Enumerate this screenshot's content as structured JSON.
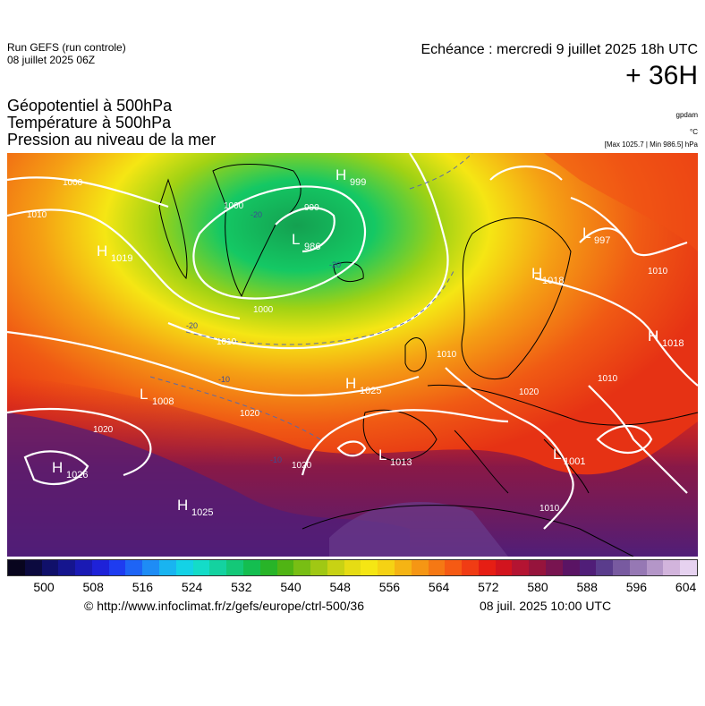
{
  "header": {
    "run_line1": "Run GEFS (run controle)",
    "run_line2": "08 juillet 2025 06Z",
    "echeance": "Echéance : mercredi 9 juillet 2025 18h UTC",
    "lead_time": "+ 36H"
  },
  "titles": {
    "line1": "Géopotentiel à 500hPa",
    "line2": "Température à 500hPa",
    "line3": "Pression au niveau de la mer"
  },
  "units": {
    "geopotential": "gpdam",
    "temperature": "°C",
    "pressure": "[Max 1025.7 | Min 986.5] hPa"
  },
  "pressure_centers": [
    {
      "type": "H",
      "value": "1019"
    },
    {
      "type": "H",
      "value": "999"
    },
    {
      "type": "L",
      "value": "986"
    },
    {
      "type": "L",
      "value": "997"
    },
    {
      "type": "H",
      "value": "1018"
    },
    {
      "type": "H",
      "value": "1018"
    },
    {
      "type": "H",
      "value": "1025"
    },
    {
      "type": "L",
      "value": "1008"
    },
    {
      "type": "H",
      "value": "1026"
    },
    {
      "type": "L",
      "value": "1013"
    },
    {
      "type": "L",
      "value": "1001"
    },
    {
      "type": "H",
      "value": "1025"
    }
  ],
  "isobar_labels": [
    "1000",
    "1010",
    "1000",
    "990",
    "1000",
    "1010",
    "1010",
    "1020",
    "1020",
    "1020",
    "1010",
    "1010",
    "1010",
    "1020"
  ],
  "isotherm_labels": [
    "-20",
    "-20",
    "-20",
    "-10",
    "-10"
  ],
  "legend": {
    "colors": [
      "#08051e",
      "#0c0a3f",
      "#10106a",
      "#15158e",
      "#1a1ab4",
      "#1e22d8",
      "#1e3cf0",
      "#1e64f5",
      "#1e8cf5",
      "#19b4f0",
      "#14d2e6",
      "#14dcc8",
      "#14d2a0",
      "#14c878",
      "#14be50",
      "#28b428",
      "#50b414",
      "#78be14",
      "#a0c814",
      "#c8d214",
      "#e6dc14",
      "#f5e614",
      "#f5d214",
      "#f5b414",
      "#f59614",
      "#f57814",
      "#f55a14",
      "#f03c14",
      "#e61e14",
      "#d2141e",
      "#b41432",
      "#96143c",
      "#781450",
      "#5a1464",
      "#501e78",
      "#5a3c8c",
      "#785aa0",
      "#9678b4",
      "#b496c8",
      "#d2b4dc",
      "#e6d2f0"
    ],
    "ticks": [
      "500",
      "508",
      "516",
      "524",
      "532",
      "540",
      "548",
      "556",
      "564",
      "572",
      "580",
      "588",
      "596",
      "604"
    ]
  },
  "footer": {
    "url": "© http://www.infoclimat.fr/z/gefs/europe/ctrl-500/36",
    "timestamp": "08 juil. 2025 10:00 UTC"
  }
}
